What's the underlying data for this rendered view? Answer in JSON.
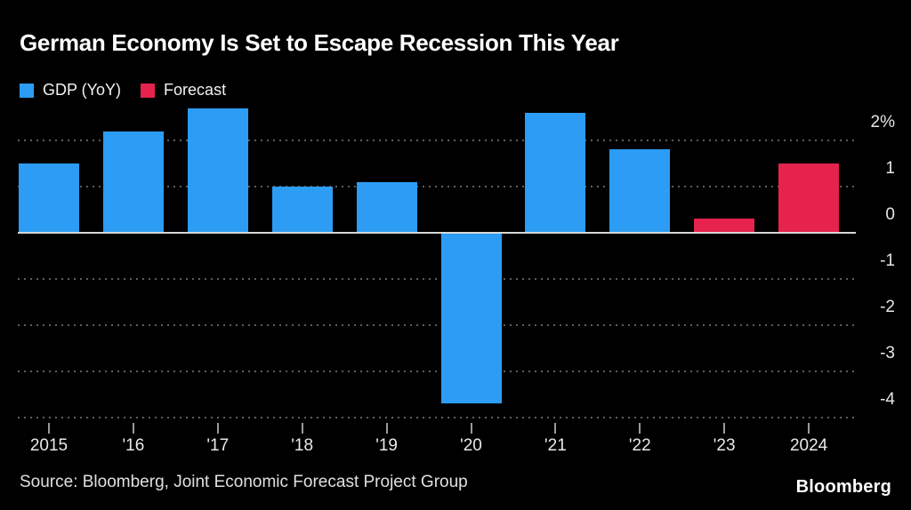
{
  "header": {
    "title": "German Economy Is Set to Escape Recession This Year"
  },
  "legend": [
    {
      "label": "GDP (YoY)",
      "color": "#2d9cf4"
    },
    {
      "label": "Forecast",
      "color": "#e5234d"
    }
  ],
  "chart_data": {
    "type": "bar",
    "title": "German Economy Is Set to Escape Recession This Year",
    "categories": [
      "2015",
      "'16",
      "'17",
      "'18",
      "'19",
      "'20",
      "'21",
      "'22",
      "'23",
      "2024"
    ],
    "values": [
      1.5,
      2.2,
      2.7,
      1.0,
      1.1,
      -3.7,
      2.6,
      1.8,
      0.3,
      1.5
    ],
    "bar_series": [
      "GDP (YoY)",
      "GDP (YoY)",
      "GDP (YoY)",
      "GDP (YoY)",
      "GDP (YoY)",
      "GDP (YoY)",
      "GDP (YoY)",
      "GDP (YoY)",
      "Forecast",
      "Forecast"
    ],
    "series_colors": {
      "GDP (YoY)": "#2d9cf4",
      "Forecast": "#e5234d"
    },
    "y_ticks": [
      {
        "v": 2,
        "label": "2%"
      },
      {
        "v": 1,
        "label": "1"
      },
      {
        "v": 0,
        "label": "0"
      },
      {
        "v": -1,
        "label": "-1"
      },
      {
        "v": -2,
        "label": "-2"
      },
      {
        "v": -3,
        "label": "-3"
      },
      {
        "v": -4,
        "label": "-4"
      }
    ],
    "ylim": [
      -4.2,
      2.8
    ],
    "xlabel": "",
    "ylabel": "",
    "grid": "horizontal-dotted",
    "zero_line": true,
    "legend_position": "top-left"
  },
  "footer": {
    "source": "Source: Bloomberg, Joint Economic Forecast Project Group",
    "logo": "Bloomberg"
  },
  "colors": {
    "background": "#000000",
    "gdp_bar": "#2d9cf4",
    "forecast_bar": "#e5234d",
    "gridline": "#5e5e5e",
    "zero_line": "#d6d6d6",
    "text": "#ffffff",
    "axis_text": "#e6e6e6"
  }
}
